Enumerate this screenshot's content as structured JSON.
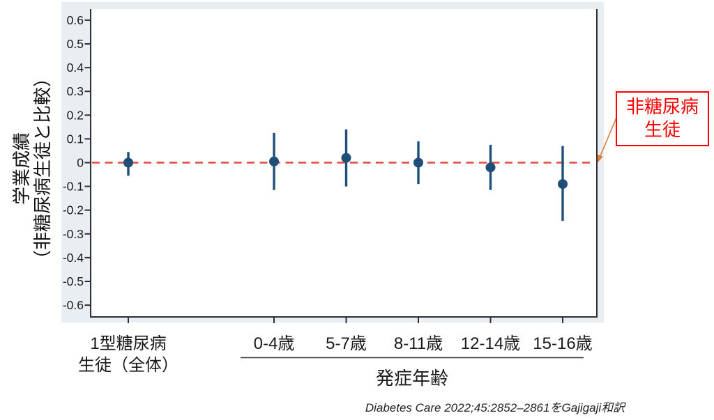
{
  "figure": {
    "background": "#e8eef1",
    "plot_background": "#ffffff",
    "axis_color": "#2f2f2f"
  },
  "y_axis": {
    "title_line1": "学業成績",
    "title_line2": "（非糖尿病生徒と比較）",
    "tick_labels": [
      "0.6",
      "0.5",
      "0.4",
      "0.3",
      "0.2",
      "0.1",
      "0",
      "-0.1",
      "-0.2",
      "-0.3",
      "-0.4",
      "-0.5",
      "-0.6"
    ]
  },
  "x_axis": {
    "categories": [
      "1型糖尿病\n生徒（全体）",
      "0-4歳",
      "5-7歳",
      "8-11歳",
      "12-14歳",
      "15-16歳"
    ],
    "onset_group_label": "発症年齢",
    "onset_group_members": [
      "0-4歳",
      "5-7歳",
      "8-11歳",
      "12-14歳",
      "15-16歳"
    ]
  },
  "chart_data": {
    "type": "scatter",
    "title": "",
    "ylabel": "学業成績（非糖尿病生徒と比較）",
    "xlabel": "発症年齢",
    "ylim": [
      -0.6,
      0.6
    ],
    "y_tick_step": 0.1,
    "grid": false,
    "categories": [
      "1型糖尿病生徒（全体）",
      "0-4歳",
      "5-7歳",
      "8-11歳",
      "12-14歳",
      "15-16歳"
    ],
    "reference_line": {
      "value": 0,
      "style": "dashed",
      "color": "#e0493f",
      "label": "非糖尿病生徒"
    },
    "series": [
      {
        "marker_color": "#1f4e79",
        "points": [
          {
            "category": "1型糖尿病生徒（全体）",
            "estimate": 0.0,
            "ci_low": -0.055,
            "ci_high": 0.045
          },
          {
            "category": "0-4歳",
            "estimate": 0.005,
            "ci_low": -0.115,
            "ci_high": 0.125
          },
          {
            "category": "5-7歳",
            "estimate": 0.02,
            "ci_low": -0.1,
            "ci_high": 0.14
          },
          {
            "category": "8-11歳",
            "estimate": 0.0,
            "ci_low": -0.09,
            "ci_high": 0.09
          },
          {
            "category": "12-14歳",
            "estimate": -0.02,
            "ci_low": -0.115,
            "ci_high": 0.075
          },
          {
            "category": "15-16歳",
            "estimate": -0.09,
            "ci_low": -0.245,
            "ci_high": 0.07
          }
        ]
      }
    ]
  },
  "annotation": {
    "line1": "非糖尿病",
    "line2": "生徒",
    "text_color": "#ff0000",
    "border_color": "#ff0000",
    "arrow_color": "#e07b39"
  },
  "citation": "Diabetes Care 2022;45:2852–2861をGajigaji和訳"
}
